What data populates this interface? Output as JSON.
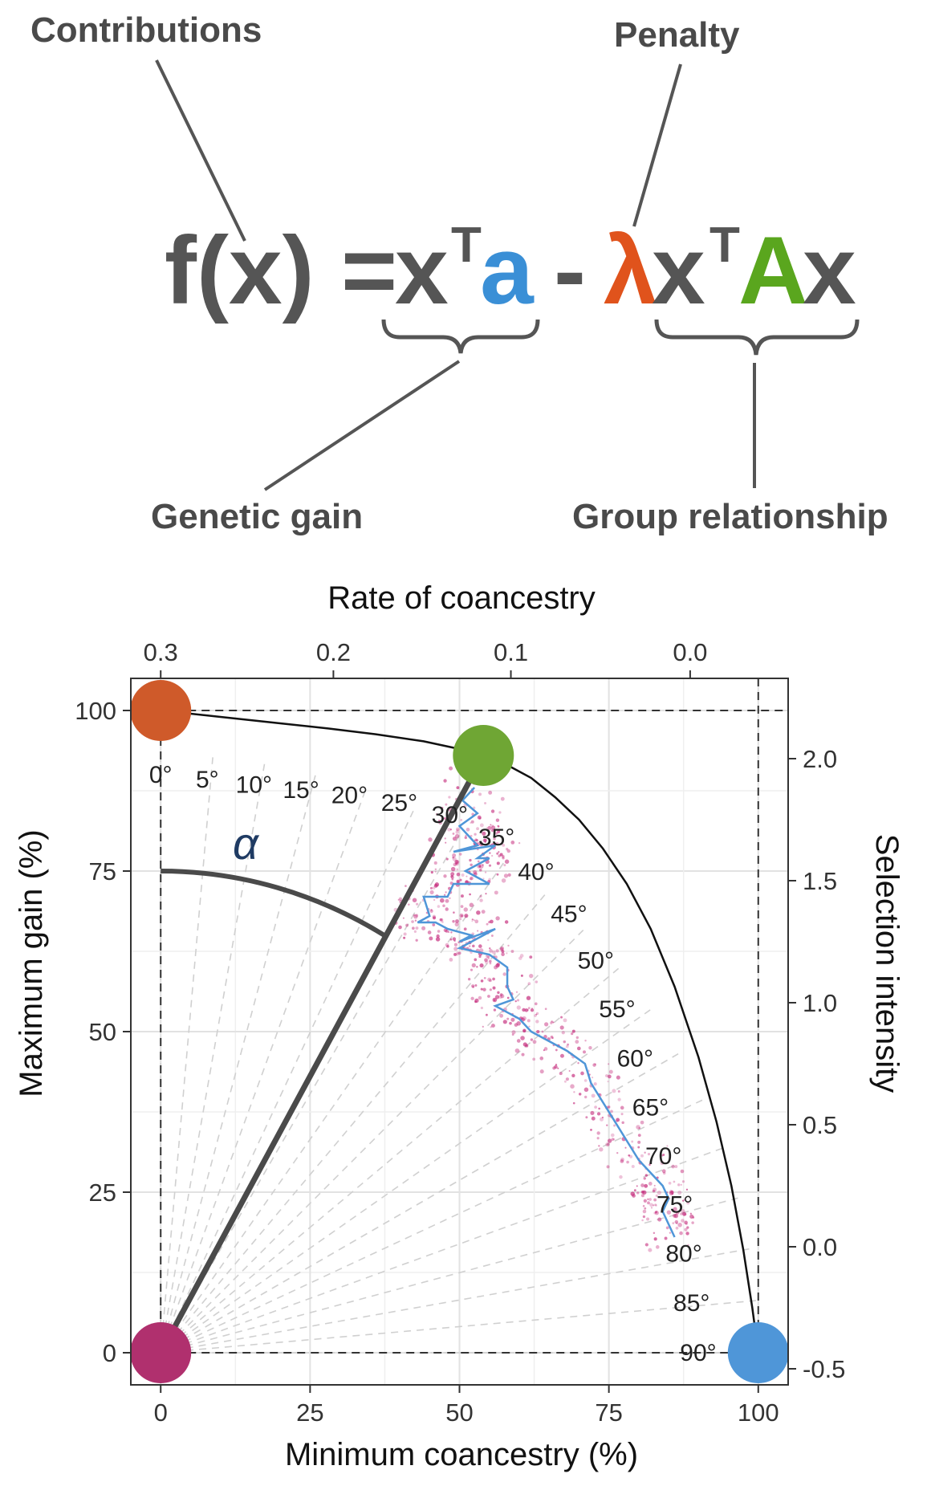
{
  "equation": {
    "lhs": "f(x) = ",
    "x_bold": "x",
    "superscript_t": "T",
    "a_symbol": "a",
    "minus": "-",
    "lambda_symbol": "λ",
    "A_symbol": "A",
    "colors": {
      "text": "#555555",
      "a": "#3a8fd6",
      "lambda": "#e0531c",
      "A": "#5aa61e"
    }
  },
  "labels": {
    "contributions": "Contributions",
    "penalty": "Penalty",
    "genetic_gain": "Genetic gain",
    "group_relationship": "Group relationship"
  },
  "chart_data": {
    "type": "scatter",
    "xlabel": "Minimum coancestry (%)",
    "ylabel": "Maximum gain (%)",
    "x2label": "Rate of coancestry",
    "y2label": "Selection intensity",
    "xlim": [
      -5,
      105
    ],
    "ylim": [
      -5,
      105
    ],
    "x_ticks": [
      "0",
      "25",
      "50",
      "75",
      "100"
    ],
    "y_ticks": [
      "0",
      "25",
      "50",
      "75",
      "100"
    ],
    "x2_ticks": [
      {
        "label": "0.3",
        "at": 0
      },
      {
        "label": "0.2",
        "at": 28.9
      },
      {
        "label": "0.1",
        "at": 58.6
      },
      {
        "label": "0.0",
        "at": 88.6
      }
    ],
    "y2_ticks": [
      {
        "label": "2.0",
        "at": 92.5
      },
      {
        "label": "1.5",
        "at": 73.5
      },
      {
        "label": "1.0",
        "at": 54.5
      },
      {
        "label": "0.5",
        "at": 35.5
      },
      {
        "label": "0.0",
        "at": 16.5
      },
      {
        "label": "-0.5",
        "at": -2.5
      }
    ],
    "grid": true,
    "frontier": [
      [
        0,
        100
      ],
      [
        10,
        99
      ],
      [
        20,
        98
      ],
      [
        28,
        97.2
      ],
      [
        36,
        96.3
      ],
      [
        44,
        95.2
      ],
      [
        50,
        94
      ],
      [
        54,
        93
      ],
      [
        58,
        91.5
      ],
      [
        62,
        89.5
      ],
      [
        66,
        86.5
      ],
      [
        70,
        83
      ],
      [
        74,
        78.5
      ],
      [
        78,
        73
      ],
      [
        82,
        66
      ],
      [
        86,
        57
      ],
      [
        90,
        46
      ],
      [
        93,
        36
      ],
      [
        95.5,
        26
      ],
      [
        97.5,
        16
      ],
      [
        99,
        7
      ],
      [
        100,
        0
      ]
    ],
    "angle_labels": [
      "0°",
      "5°",
      "10°",
      "15°",
      "20°",
      "25°",
      "30°",
      "35°",
      "40°",
      "45°",
      "50°",
      "55°",
      "60°",
      "65°",
      "70°",
      "75°",
      "80°",
      "85°",
      "90°"
    ],
    "mean_path": [
      [
        52.5,
        88
      ],
      [
        50.5,
        86
      ],
      [
        53,
        84
      ],
      [
        50,
        82
      ],
      [
        52,
        80
      ],
      [
        53,
        79
      ],
      [
        49,
        78
      ],
      [
        56,
        79
      ],
      [
        53,
        77
      ],
      [
        55,
        77
      ],
      [
        51,
        75
      ],
      [
        55,
        73
      ],
      [
        49,
        73
      ],
      [
        48,
        71
      ],
      [
        44,
        71
      ],
      [
        45,
        68
      ],
      [
        43,
        67
      ],
      [
        46,
        67
      ],
      [
        48,
        66
      ],
      [
        52,
        65
      ],
      [
        50,
        64
      ],
      [
        56,
        66
      ],
      [
        50,
        63
      ],
      [
        55,
        62
      ],
      [
        58,
        60
      ],
      [
        58,
        57
      ],
      [
        59,
        55
      ],
      [
        56,
        54
      ],
      [
        60,
        52
      ],
      [
        62,
        50
      ],
      [
        64,
        49
      ],
      [
        66,
        48
      ],
      [
        68,
        47
      ],
      [
        71,
        45
      ],
      [
        72,
        42
      ],
      [
        74,
        39
      ],
      [
        76,
        36
      ],
      [
        78,
        33
      ],
      [
        80,
        30
      ],
      [
        82,
        28
      ],
      [
        84,
        26
      ],
      [
        85,
        24
      ],
      [
        84,
        22
      ],
      [
        85,
        20
      ],
      [
        86,
        18
      ]
    ],
    "optimum_line": [
      [
        0,
        0
      ],
      [
        54,
        93
      ]
    ],
    "alpha_arc_radius": 75,
    "alpha_label": "α",
    "points": [
      {
        "name": "max-gain",
        "x": 0,
        "y": 100,
        "color": "#cf5a2a"
      },
      {
        "name": "optimum",
        "x": 54,
        "y": 93,
        "color": "#6fa634"
      },
      {
        "name": "origin",
        "x": 0,
        "y": 0,
        "color": "#b0306e"
      },
      {
        "name": "min-coancestry",
        "x": 100,
        "y": 0,
        "color": "#4f96d8"
      }
    ],
    "cloud_color": "#c4287a",
    "path_color": "#4f96d8"
  }
}
